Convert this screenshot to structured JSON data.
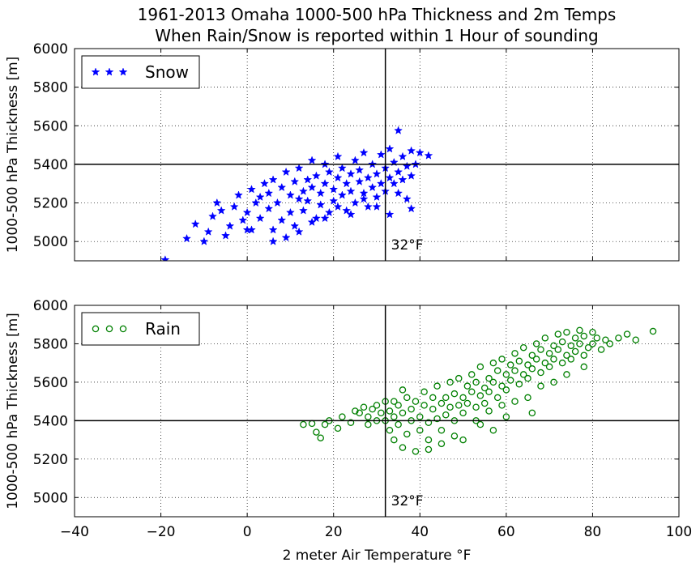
{
  "title_line1": "1961-2013 Omaha 1000-500 hPa Thickness and 2m Temps",
  "title_line2": "When Rain/Snow is reported within 1 Hour of sounding",
  "chart_data": [
    {
      "type": "scatter",
      "legend": "Snow",
      "legend_placement": "top-left",
      "marker": "star",
      "color": "#0000ff",
      "xlim": [
        -40,
        100
      ],
      "ylim": [
        4900,
        6000
      ],
      "xticks": [
        -40,
        -20,
        0,
        20,
        40,
        60,
        80,
        100
      ],
      "yticks": [
        5000,
        5200,
        5400,
        5600,
        5800,
        6000
      ],
      "ylabel": "1000-500 hPa Thickness [m]",
      "grid": true,
      "hline": 5400,
      "vline": 32,
      "annotation": {
        "text": "32°F",
        "x": 32,
        "y": 5060
      },
      "series": [
        {
          "name": "Snow",
          "points": [
            [
              -19,
              4905
            ],
            [
              -14,
              5015
            ],
            [
              -10,
              5000
            ],
            [
              -9,
              5050
            ],
            [
              -12,
              5090
            ],
            [
              -8,
              5130
            ],
            [
              -6,
              5160
            ],
            [
              -7,
              5200
            ],
            [
              -4,
              5080
            ],
            [
              -3,
              5180
            ],
            [
              -2,
              5240
            ],
            [
              -1,
              5110
            ],
            [
              0,
              5150
            ],
            [
              1,
              5270
            ],
            [
              1,
              5060
            ],
            [
              2,
              5200
            ],
            [
              3,
              5230
            ],
            [
              3,
              5120
            ],
            [
              4,
              5300
            ],
            [
              5,
              5170
            ],
            [
              5,
              5250
            ],
            [
              6,
              5060
            ],
            [
              6,
              5320
            ],
            [
              7,
              5200
            ],
            [
              8,
              5280
            ],
            [
              8,
              5110
            ],
            [
              9,
              5360
            ],
            [
              10,
              5240
            ],
            [
              10,
              5150
            ],
            [
              11,
              5310
            ],
            [
              11,
              5080
            ],
            [
              12,
              5220
            ],
            [
              12,
              5380
            ],
            [
              13,
              5260
            ],
            [
              13,
              5160
            ],
            [
              14,
              5320
            ],
            [
              14,
              5210
            ],
            [
              15,
              5420
            ],
            [
              15,
              5280
            ],
            [
              16,
              5120
            ],
            [
              16,
              5340
            ],
            [
              17,
              5250
            ],
            [
              17,
              5190
            ],
            [
              18,
              5400
            ],
            [
              18,
              5300
            ],
            [
              19,
              5150
            ],
            [
              19,
              5360
            ],
            [
              20,
              5270
            ],
            [
              20,
              5210
            ],
            [
              21,
              5330
            ],
            [
              21,
              5440
            ],
            [
              22,
              5240
            ],
            [
              22,
              5380
            ],
            [
              23,
              5160
            ],
            [
              23,
              5300
            ],
            [
              24,
              5350
            ],
            [
              24,
              5260
            ],
            [
              25,
              5420
            ],
            [
              25,
              5200
            ],
            [
              26,
              5310
            ],
            [
              26,
              5370
            ],
            [
              27,
              5250
            ],
            [
              27,
              5460
            ],
            [
              28,
              5330
            ],
            [
              28,
              5180
            ],
            [
              29,
              5280
            ],
            [
              29,
              5400
            ],
            [
              30,
              5350
            ],
            [
              30,
              5230
            ],
            [
              31,
              5300
            ],
            [
              31,
              5450
            ],
            [
              32,
              5380
            ],
            [
              32,
              5260
            ],
            [
              33,
              5330
            ],
            [
              33,
              5480
            ],
            [
              34,
              5300
            ],
            [
              34,
              5410
            ],
            [
              35,
              5360
            ],
            [
              35,
              5250
            ],
            [
              35,
              5575
            ],
            [
              36,
              5440
            ],
            [
              36,
              5320
            ],
            [
              37,
              5390
            ],
            [
              37,
              5220
            ],
            [
              38,
              5470
            ],
            [
              38,
              5340
            ],
            [
              38,
              5170
            ],
            [
              39,
              5400
            ],
            [
              40,
              5460
            ],
            [
              42,
              5445
            ],
            [
              33,
              5140
            ],
            [
              30,
              5180
            ],
            [
              27,
              5220
            ],
            [
              24,
              5140
            ],
            [
              21,
              5180
            ],
            [
              18,
              5120
            ],
            [
              15,
              5100
            ],
            [
              12,
              5050
            ],
            [
              9,
              5020
            ],
            [
              6,
              5000
            ],
            [
              0,
              5060
            ],
            [
              -5,
              5030
            ]
          ]
        }
      ]
    },
    {
      "type": "scatter",
      "legend": "Rain",
      "legend_placement": "top-left",
      "marker": "circle",
      "color": "#008000",
      "xlim": [
        -40,
        100
      ],
      "ylim": [
        4900,
        6000
      ],
      "xticks": [
        -40,
        -20,
        0,
        20,
        40,
        60,
        80,
        100
      ],
      "yticks": [
        5000,
        5200,
        5400,
        5600,
        5800,
        6000
      ],
      "xlabel": "2 meter Air Temperature °F",
      "ylabel": "1000-500 hPa Thickness [m]",
      "grid": true,
      "hline": 5400,
      "vline": 32,
      "annotation": {
        "text": "32°F",
        "x": 32,
        "y": 5060
      },
      "series": [
        {
          "name": "Rain",
          "points": [
            [
              13,
              5380
            ],
            [
              15,
              5385
            ],
            [
              16,
              5340
            ],
            [
              17,
              5310
            ],
            [
              18,
              5380
            ],
            [
              19,
              5400
            ],
            [
              21,
              5360
            ],
            [
              22,
              5420
            ],
            [
              24,
              5390
            ],
            [
              25,
              5450
            ],
            [
              26,
              5440
            ],
            [
              27,
              5470
            ],
            [
              28,
              5420
            ],
            [
              29,
              5460
            ],
            [
              30,
              5480
            ],
            [
              31,
              5440
            ],
            [
              32,
              5400
            ],
            [
              32,
              5500
            ],
            [
              33,
              5350
            ],
            [
              33,
              5450
            ],
            [
              34,
              5300
            ],
            [
              34,
              5420
            ],
            [
              35,
              5480
            ],
            [
              35,
              5380
            ],
            [
              36,
              5260
            ],
            [
              36,
              5440
            ],
            [
              37,
              5520
            ],
            [
              37,
              5330
            ],
            [
              38,
              5460
            ],
            [
              38,
              5400
            ],
            [
              39,
              5240
            ],
            [
              39,
              5500
            ],
            [
              40,
              5420
            ],
            [
              40,
              5350
            ],
            [
              41,
              5480
            ],
            [
              41,
              5550
            ],
            [
              42,
              5390
            ],
            [
              42,
              5300
            ],
            [
              43,
              5460
            ],
            [
              43,
              5520
            ],
            [
              44,
              5410
            ],
            [
              44,
              5580
            ],
            [
              45,
              5490
            ],
            [
              45,
              5350
            ],
            [
              46,
              5520
            ],
            [
              46,
              5430
            ],
            [
              47,
              5600
            ],
            [
              47,
              5470
            ],
            [
              48,
              5400
            ],
            [
              48,
              5540
            ],
            [
              49,
              5480
            ],
            [
              49,
              5620
            ],
            [
              50,
              5520
            ],
            [
              50,
              5440
            ],
            [
              51,
              5580
            ],
            [
              51,
              5490
            ],
            [
              52,
              5640
            ],
            [
              52,
              5550
            ],
            [
              53,
              5470
            ],
            [
              53,
              5600
            ],
            [
              54,
              5530
            ],
            [
              54,
              5680
            ],
            [
              55,
              5570
            ],
            [
              55,
              5490
            ],
            [
              56,
              5620
            ],
            [
              56,
              5550
            ],
            [
              57,
              5700
            ],
            [
              57,
              5600
            ],
            [
              58,
              5520
            ],
            [
              58,
              5660
            ],
            [
              59,
              5580
            ],
            [
              59,
              5720
            ],
            [
              60,
              5640
            ],
            [
              60,
              5560
            ],
            [
              61,
              5690
            ],
            [
              61,
              5610
            ],
            [
              62,
              5750
            ],
            [
              62,
              5660
            ],
            [
              63,
              5590
            ],
            [
              63,
              5710
            ],
            [
              64,
              5640
            ],
            [
              64,
              5780
            ],
            [
              65,
              5690
            ],
            [
              65,
              5620
            ],
            [
              66,
              5740
            ],
            [
              66,
              5670
            ],
            [
              67,
              5800
            ],
            [
              67,
              5720
            ],
            [
              68,
              5650
            ],
            [
              68,
              5770
            ],
            [
              69,
              5700
            ],
            [
              69,
              5830
            ],
            [
              70,
              5750
            ],
            [
              70,
              5680
            ],
            [
              71,
              5790
            ],
            [
              71,
              5720
            ],
            [
              72,
              5850
            ],
            [
              72,
              5770
            ],
            [
              73,
              5700
            ],
            [
              73,
              5810
            ],
            [
              74,
              5740
            ],
            [
              74,
              5860
            ],
            [
              75,
              5790
            ],
            [
              75,
              5720
            ],
            [
              76,
              5830
            ],
            [
              76,
              5760
            ],
            [
              77,
              5870
            ],
            [
              77,
              5800
            ],
            [
              78,
              5740
            ],
            [
              78,
              5840
            ],
            [
              79,
              5780
            ],
            [
              80,
              5860
            ],
            [
              80,
              5800
            ],
            [
              81,
              5830
            ],
            [
              82,
              5770
            ],
            [
              83,
              5820
            ],
            [
              84,
              5800
            ],
            [
              86,
              5830
            ],
            [
              88,
              5850
            ],
            [
              90,
              5820
            ],
            [
              94,
              5865
            ],
            [
              53,
              5400
            ],
            [
              56,
              5450
            ],
            [
              59,
              5480
            ],
            [
              62,
              5500
            ],
            [
              65,
              5520
            ],
            [
              68,
              5580
            ],
            [
              71,
              5600
            ],
            [
              60,
              5420
            ],
            [
              54,
              5380
            ],
            [
              48,
              5320
            ],
            [
              45,
              5280
            ],
            [
              42,
              5250
            ],
            [
              50,
              5300
            ],
            [
              57,
              5350
            ],
            [
              66,
              5440
            ],
            [
              74,
              5640
            ],
            [
              78,
              5680
            ],
            [
              30,
              5400
            ],
            [
              28,
              5380
            ],
            [
              34,
              5500
            ],
            [
              36,
              5560
            ]
          ]
        }
      ]
    }
  ]
}
